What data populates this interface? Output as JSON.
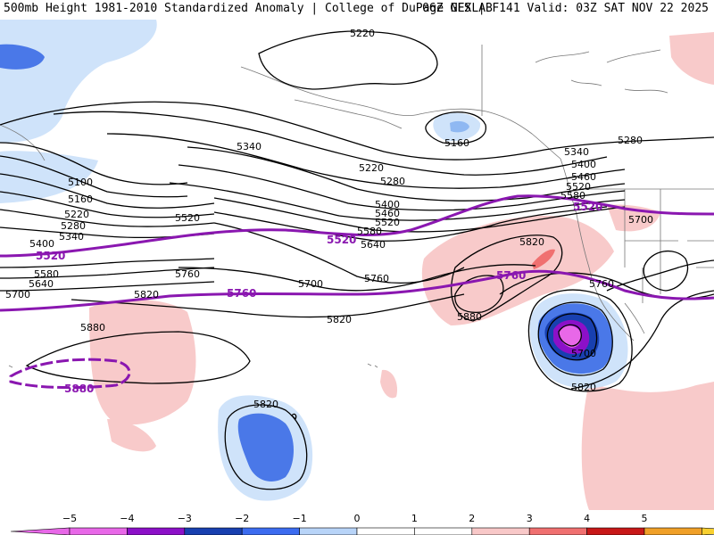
{
  "header": {
    "title": "500mb Height 1981-2010 Standardized Anomaly | College of DuPage NEXLAB",
    "run_info": "06Z GFS | F141 Valid: 03Z SAT NOV 22 2025"
  },
  "contour_labels": {
    "c5220a": "5220",
    "c5160a": "5160",
    "c5100a": "5100",
    "c5160b": "5160",
    "c5220b": "5220",
    "c5280a": "5280",
    "c5340a": "5340",
    "c5400a": "5400",
    "c5520a": "5520",
    "c5580a": "5580",
    "c5640a": "5640",
    "c5700a": "5700",
    "c5340b": "5340",
    "c5220c": "5220",
    "c5280b": "5280",
    "c5400b": "5400",
    "c5460a": "5460",
    "c5520b": "5520",
    "c5580b": "5580",
    "c5640b": "5640",
    "c5760a": "5760",
    "c5820a": "5820",
    "c5700b": "5700",
    "c5760b": "5760",
    "c5820b": "5820",
    "c5880a": "5880",
    "c5820c": "5820",
    "c5880b": "5880",
    "c5280c": "5280",
    "c5340c": "5340",
    "c5400c": "5400",
    "c5460c": "5460",
    "c5520c": "5520",
    "c5580c": "5580",
    "c5700c": "5700",
    "c5760c": "5760",
    "c5700d": "5700",
    "c5820d": "5820",
    "c5820e": "5820",
    "p5520a": "5520",
    "p5520b": "5520",
    "p5520c": "5520",
    "p5760a": "5760",
    "p5760b": "5760",
    "p5880": "5880"
  },
  "legend": {
    "ticks": [
      "−5",
      "−4",
      "−3",
      "−2",
      "−1",
      "0",
      "1",
      "2",
      "3",
      "4",
      "5"
    ],
    "colors": [
      "#e868e8",
      "#8c10c8",
      "#1840b0",
      "#3c6cf0",
      "#b8d4f8",
      "#ffffff",
      "#ffffff",
      "#f8c8c8",
      "#f07070",
      "#c81818",
      "#f0a028"
    ],
    "neg_arrow_color": "#e868e8",
    "pos_arrow_color": "#f8d030"
  }
}
